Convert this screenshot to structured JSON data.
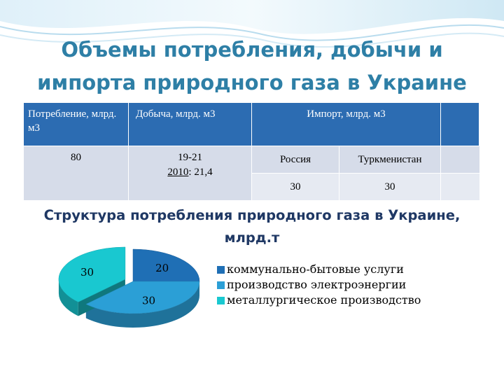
{
  "title": {
    "line1": "Объемы потребления, добычи и",
    "line2": "импорта природного газа в Украине"
  },
  "table": {
    "headers": {
      "consumption": "Потребление, млрд. м3",
      "production": "Добыча, млрд. м3",
      "import": "Импорт, млрд. м3"
    },
    "consumption_value": "80",
    "production_value": "19-21",
    "production_year": "2010",
    "production_year_value": ": 21,4",
    "import_countries": [
      "Россия",
      "Туркменистан"
    ],
    "import_values": [
      "30",
      "30"
    ]
  },
  "subtitle": {
    "line1": "Структура потребления природного газа в Украине,",
    "line2": "млрд.т"
  },
  "chart_data": {
    "type": "pie",
    "title": "",
    "categories": [
      "коммунально-бытовые услуги",
      "производство электроэнергии",
      "металлургическое производство"
    ],
    "values": [
      20,
      30,
      30
    ],
    "labels": [
      "20",
      "30",
      "30"
    ],
    "colors": [
      "#1f6fb5",
      "#2b9fd6",
      "#19c8d0"
    ],
    "exploded": "металлургическое производство",
    "style": "3d",
    "legend": "right"
  }
}
